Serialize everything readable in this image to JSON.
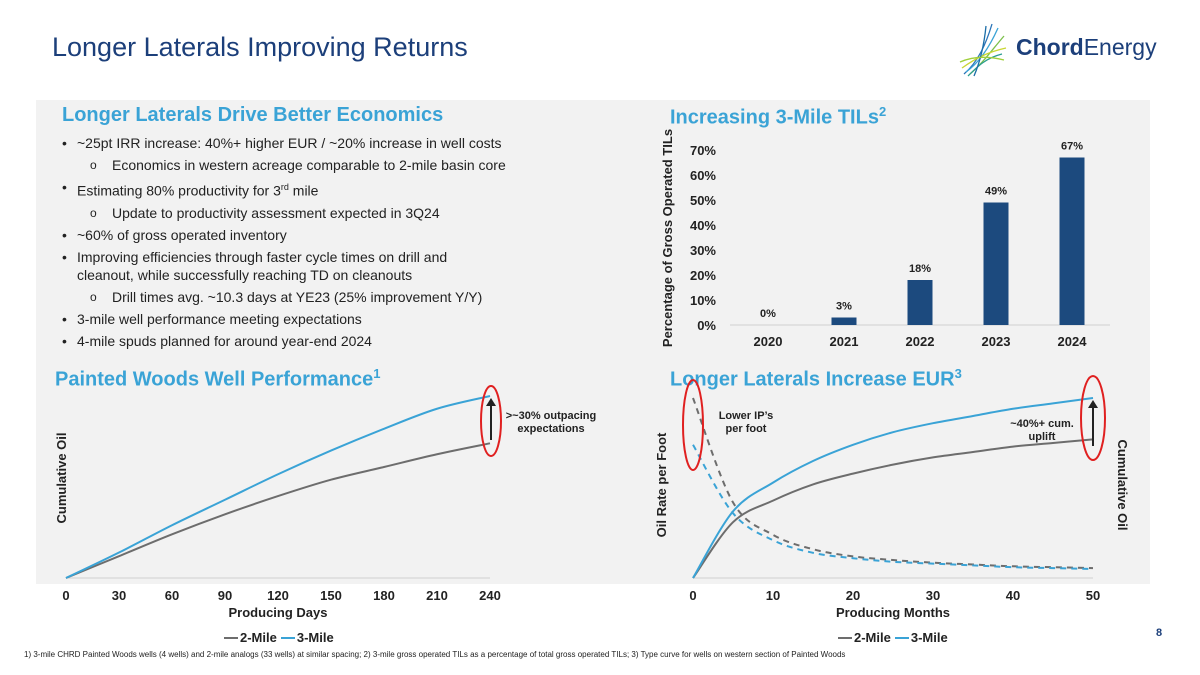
{
  "page": {
    "title": "Longer Laterals Improving Returns",
    "page_number": "8"
  },
  "logo": {
    "bold": "Chord",
    "regular": "Energy"
  },
  "colors": {
    "navy": "#1c4a7e",
    "light_blue": "#3aa3d6",
    "gray": "#6d6d6d",
    "accent_red": "#e02020"
  },
  "economics": {
    "title": "Longer Laterals Drive Better Economics",
    "bullets": [
      {
        "level": 1,
        "text": "~25pt IRR increase: 40%+ higher EUR / ~20% increase in well costs"
      },
      {
        "level": 2,
        "text": "Economics in western acreage comparable to 2-mile basin core"
      },
      {
        "level": 1,
        "text": "Estimating 80% productivity for 3",
        "sup": "rd",
        "text_after": " mile"
      },
      {
        "level": 2,
        "text": "Update to productivity assessment expected in 3Q24"
      },
      {
        "level": 1,
        "text": "~60% of gross operated inventory"
      },
      {
        "level": 1,
        "text": "Improving efficiencies through faster cycle times on drill and cleanout, while successfully reaching TD on cleanouts"
      },
      {
        "level": 2,
        "text": "Drill times avg. ~10.3 days at YE23 (25% improvement Y/Y)"
      },
      {
        "level": 1,
        "text": "3-mile well performance meeting expectations"
      },
      {
        "level": 1,
        "text": "4-mile spuds planned for around year-end 2024"
      }
    ]
  },
  "titles": {
    "tils": "Increasing 3-Mile TILs",
    "tils_sup": "2",
    "painted": "Painted Woods Well Performance",
    "painted_sup": "1",
    "eur": "Longer Laterals Increase EUR",
    "eur_sup": "3"
  },
  "legend": {
    "two_mile": "2-Mile",
    "three_mile": "3-Mile"
  },
  "footnote": "1)  3-mile CHRD Painted Woods wells (4 wells) and 2-mile analogs (33 wells) at similar spacing;  2) 3-mile gross operated TILs as a percentage of total gross operated TILs; 3) Type curve for wells on western section of Painted Woods",
  "chart_data": [
    {
      "type": "bar",
      "title": "Increasing 3-Mile TILs",
      "categories": [
        "2020",
        "2021",
        "2022",
        "2023",
        "2024"
      ],
      "values": [
        0,
        3,
        18,
        49,
        67
      ],
      "value_labels": [
        "0%",
        "3%",
        "18%",
        "49%",
        "67%"
      ],
      "ylabel": "Percentage of Gross Operated TILs",
      "ylim": [
        0,
        70
      ],
      "yticks": [
        "0%",
        "10%",
        "20%",
        "30%",
        "40%",
        "50%",
        "60%",
        "70%"
      ],
      "color": "#1c4a7e"
    },
    {
      "type": "line",
      "title": "Painted Woods Well Performance",
      "xlabel": "Producing Days",
      "ylabel": "Cumulative Oil",
      "xlim": [
        0,
        240
      ],
      "xticks": [
        "0",
        "30",
        "60",
        "90",
        "120",
        "150",
        "180",
        "210",
        "240"
      ],
      "ylim": [
        0,
        1
      ],
      "x": [
        0,
        30,
        60,
        90,
        120,
        150,
        180,
        210,
        240
      ],
      "series": [
        {
          "name": "2-Mile",
          "color": "#6d6d6d",
          "values": [
            0,
            0.12,
            0.24,
            0.35,
            0.45,
            0.54,
            0.61,
            0.68,
            0.74
          ]
        },
        {
          "name": "3-Mile",
          "color": "#3aa3d6",
          "values": [
            0,
            0.14,
            0.29,
            0.43,
            0.57,
            0.7,
            0.82,
            0.93,
            1.0
          ]
        }
      ],
      "annotation": ">~30% outpacing expectations"
    },
    {
      "type": "line",
      "title": "Longer Laterals Increase EUR",
      "xlabel": "Producing Months",
      "ylabel": "Oil Rate per Foot",
      "y2label": "Cumulative Oil",
      "xlim": [
        0,
        50
      ],
      "xticks": [
        "0",
        "10",
        "20",
        "30",
        "40",
        "50"
      ],
      "ylim": [
        0,
        1
      ],
      "x": [
        0,
        5,
        10,
        15,
        20,
        25,
        30,
        35,
        40,
        45,
        50
      ],
      "series": [
        {
          "name": "2-Mile",
          "color": "#6d6d6d",
          "style": "solid",
          "values": [
            0,
            0.31,
            0.43,
            0.52,
            0.58,
            0.63,
            0.67,
            0.7,
            0.73,
            0.75,
            0.77
          ]
        },
        {
          "name": "3-Mile",
          "color": "#3aa3d6",
          "style": "solid",
          "values": [
            0,
            0.37,
            0.53,
            0.65,
            0.74,
            0.81,
            0.86,
            0.9,
            0.94,
            0.97,
            1.0
          ]
        },
        {
          "name": "2-Mile rate",
          "color": "#6d6d6d",
          "style": "dashed",
          "values": [
            1.0,
            0.42,
            0.24,
            0.16,
            0.12,
            0.1,
            0.085,
            0.075,
            0.065,
            0.06,
            0.055
          ]
        },
        {
          "name": "3-Mile rate",
          "color": "#3aa3d6",
          "style": "dashed",
          "values": [
            0.74,
            0.36,
            0.21,
            0.14,
            0.11,
            0.09,
            0.08,
            0.07,
            0.06,
            0.055,
            0.05
          ]
        }
      ],
      "annotations": [
        "Lower IP’s per foot",
        "~40%+ cum. uplift"
      ]
    }
  ]
}
